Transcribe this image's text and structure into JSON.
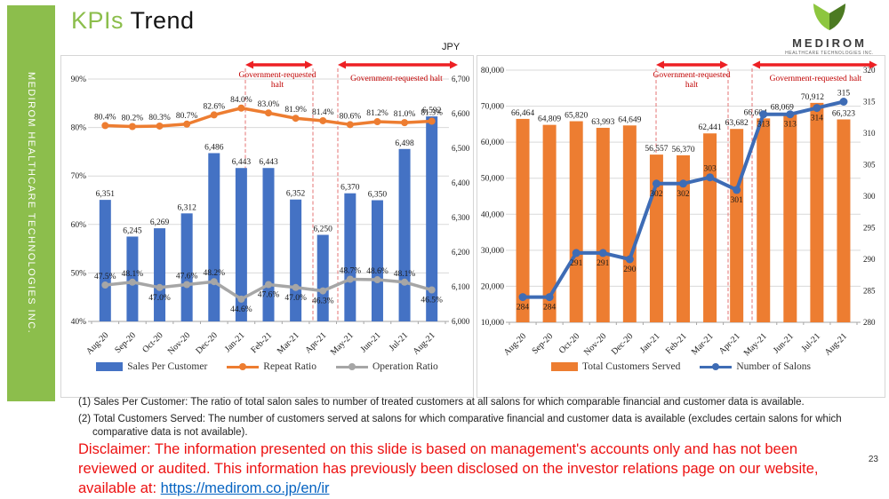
{
  "slide": {
    "title": {
      "accent": "KPIs",
      "rest": "Trend"
    },
    "sidebar_text": "MEDIROM HEALTHCARE TECHNOLOGIES INC.",
    "page_number": "23",
    "logo": {
      "brand": "MEDIROM",
      "sub": "HEALTHCARE TECHNOLOGIES INC."
    }
  },
  "annotations": {
    "two_line": [
      "Government-requested",
      "halt"
    ],
    "one_line": "Government-requested halt"
  },
  "footnotes": [
    "(1) Sales Per Customer: The ratio of total salon sales to number of treated customers at all salons for which comparable financial and customer data is available.",
    "(2) Total Customers Served: The number of customers served at salons for which comparative financial and customer data is available (excludes certain salons for which comparative data is not available)."
  ],
  "disclaimer": {
    "text": "Disclaimer: The information presented on this slide is based on management's accounts only and has not been reviewed or audited. This information has previously been disclosed on the investor relations page on our website, available at: ",
    "link": "https://medirom.co.jp/en/ir"
  },
  "theme": {
    "green": "#8CBE4C",
    "arrow_red": "#ED2024",
    "dash_red": "#E57373",
    "annotation_red": "#C00000",
    "link_blue": "#0563C1",
    "gridline": "#D9D9D9",
    "axis_line": "#A6A6A6"
  },
  "chart_data": [
    {
      "type": "bar",
      "subtype": "bar-line-combo",
      "unit_label": "JPY",
      "categories": [
        "Aug-20",
        "Sep-20",
        "Oct-20",
        "Nov-20",
        "Dec-20",
        "Jan-21",
        "Feb-21",
        "Mar-21",
        "Apr-21",
        "May-21",
        "Jun-21",
        "Jul-21",
        "Aug-21"
      ],
      "series": [
        {
          "name": "Sales Per Customer",
          "kind": "bar",
          "axis": "right",
          "color": "#4472C4",
          "values": [
            6351,
            6245,
            6269,
            6312,
            6486,
            6443,
            6443,
            6352,
            6250,
            6370,
            6350,
            6498,
            6592
          ]
        },
        {
          "name": "Repeat Ratio",
          "kind": "line",
          "axis": "left",
          "color": "#ED7D31",
          "values": [
            80.4,
            80.2,
            80.3,
            80.7,
            82.6,
            84.0,
            83.0,
            81.9,
            81.4,
            80.6,
            81.2,
            81.0,
            81.3
          ],
          "label_sides": [
            "above",
            "above",
            "above",
            "above",
            "above",
            "above",
            "above",
            "above",
            "above",
            "above",
            "above",
            "above",
            "above"
          ]
        },
        {
          "name": "Operation Ratio",
          "kind": "line",
          "axis": "left",
          "color": "#A6A6A6",
          "values": [
            47.5,
            48.1,
            47.0,
            47.6,
            48.2,
            44.6,
            47.6,
            47.0,
            46.3,
            48.7,
            48.6,
            48.1,
            46.5
          ],
          "label_sides": [
            "above",
            "above",
            "below",
            "above",
            "above",
            "below",
            "below",
            "below",
            "below",
            "above",
            "above",
            "above",
            "below"
          ]
        }
      ],
      "left_axis": {
        "min": 40,
        "max": 90,
        "step": 10,
        "format": "percent"
      },
      "right_axis": {
        "min": 6000,
        "max": 6700,
        "step": 100,
        "format": "thousands"
      },
      "legend_position": "bottom",
      "grid": true
    },
    {
      "type": "bar",
      "subtype": "bar-line-combo",
      "categories": [
        "Aug-20",
        "Sep-20",
        "Oct-20",
        "Nov-20",
        "Dec-20",
        "Jan-21",
        "Feb-21",
        "Mar-21",
        "Apr-21",
        "May-21",
        "Jun-21",
        "Jul-21",
        "Aug-21"
      ],
      "series": [
        {
          "name": "Total Customers Served",
          "kind": "bar",
          "axis": "left",
          "color": "#ED7D31",
          "values": [
            66464,
            64809,
            65820,
            63993,
            64649,
            56557,
            56370,
            62441,
            63682,
            66604,
            68069,
            70912,
            66323
          ]
        },
        {
          "name": "Number of Salons",
          "kind": "line",
          "axis": "right",
          "color": "#3E6CB5",
          "values": [
            284,
            284,
            291,
            291,
            290,
            302,
            302,
            303,
            301,
            313,
            313,
            314,
            315
          ],
          "label_sides": [
            "below",
            "below",
            "below",
            "below",
            "below",
            "below",
            "below",
            "above",
            "below",
            "below",
            "below",
            "below",
            "above"
          ]
        }
      ],
      "left_axis": {
        "min": 10000,
        "max": 80000,
        "step": 10000,
        "format": "thousands"
      },
      "right_axis": {
        "min": 280,
        "max": 320,
        "step": 5,
        "format": "plain"
      },
      "legend_position": "bottom",
      "grid": true
    }
  ]
}
